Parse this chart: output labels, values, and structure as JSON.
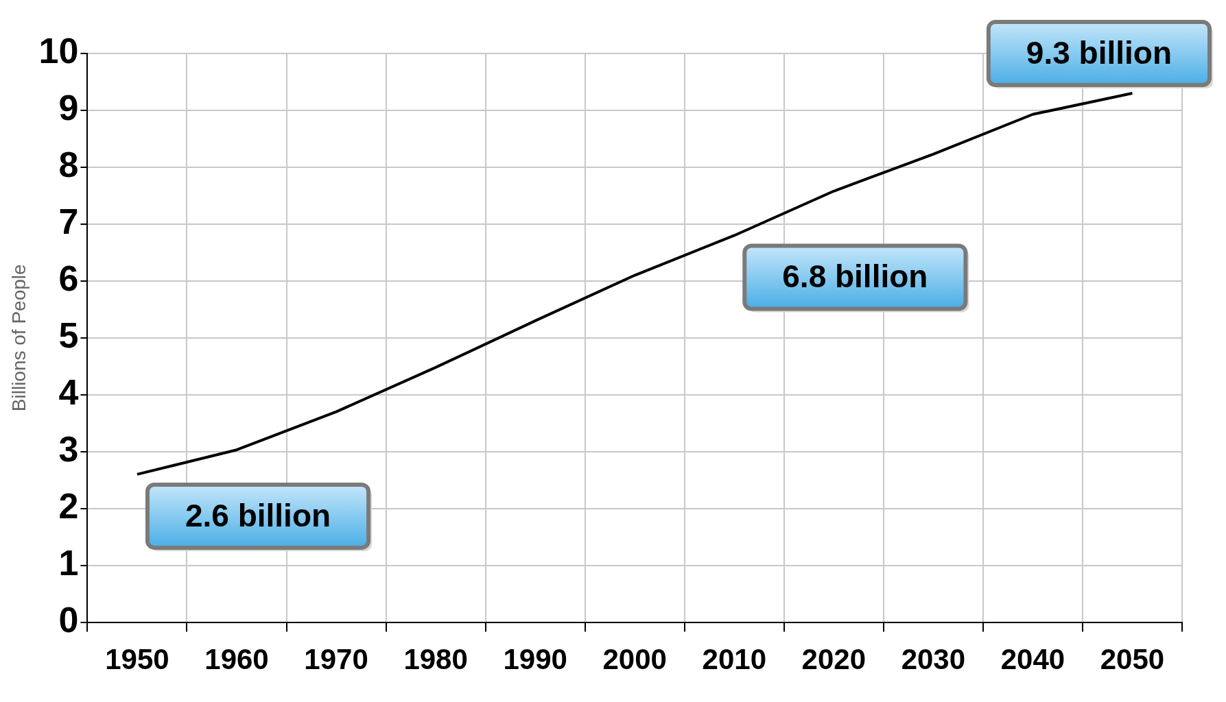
{
  "chart_data": {
    "type": "line",
    "ylabel": "Billions of People",
    "categories": [
      "1950",
      "1960",
      "1970",
      "1980",
      "1990",
      "2000",
      "2010",
      "2020",
      "2030",
      "2040",
      "2050"
    ],
    "series": [
      {
        "color": "#000000",
        "values": [
          2.6,
          3.03,
          3.7,
          4.48,
          5.3,
          6.1,
          6.8,
          7.58,
          8.23,
          8.93,
          9.3
        ]
      }
    ],
    "ylim": [
      0,
      10
    ],
    "yticks": [
      0,
      1,
      2,
      3,
      4,
      5,
      6,
      7,
      8,
      9,
      10
    ],
    "grid": true,
    "legend": false,
    "marker": "none",
    "line_style": "solid",
    "annotations": [
      {
        "text": "2.6 billion",
        "x": "1950",
        "y": 2.6
      },
      {
        "text": "6.8 billion",
        "x": "2010",
        "y": 6.8
      },
      {
        "text": "9.3 billion",
        "x": "2050",
        "y": 9.3
      }
    ]
  }
}
